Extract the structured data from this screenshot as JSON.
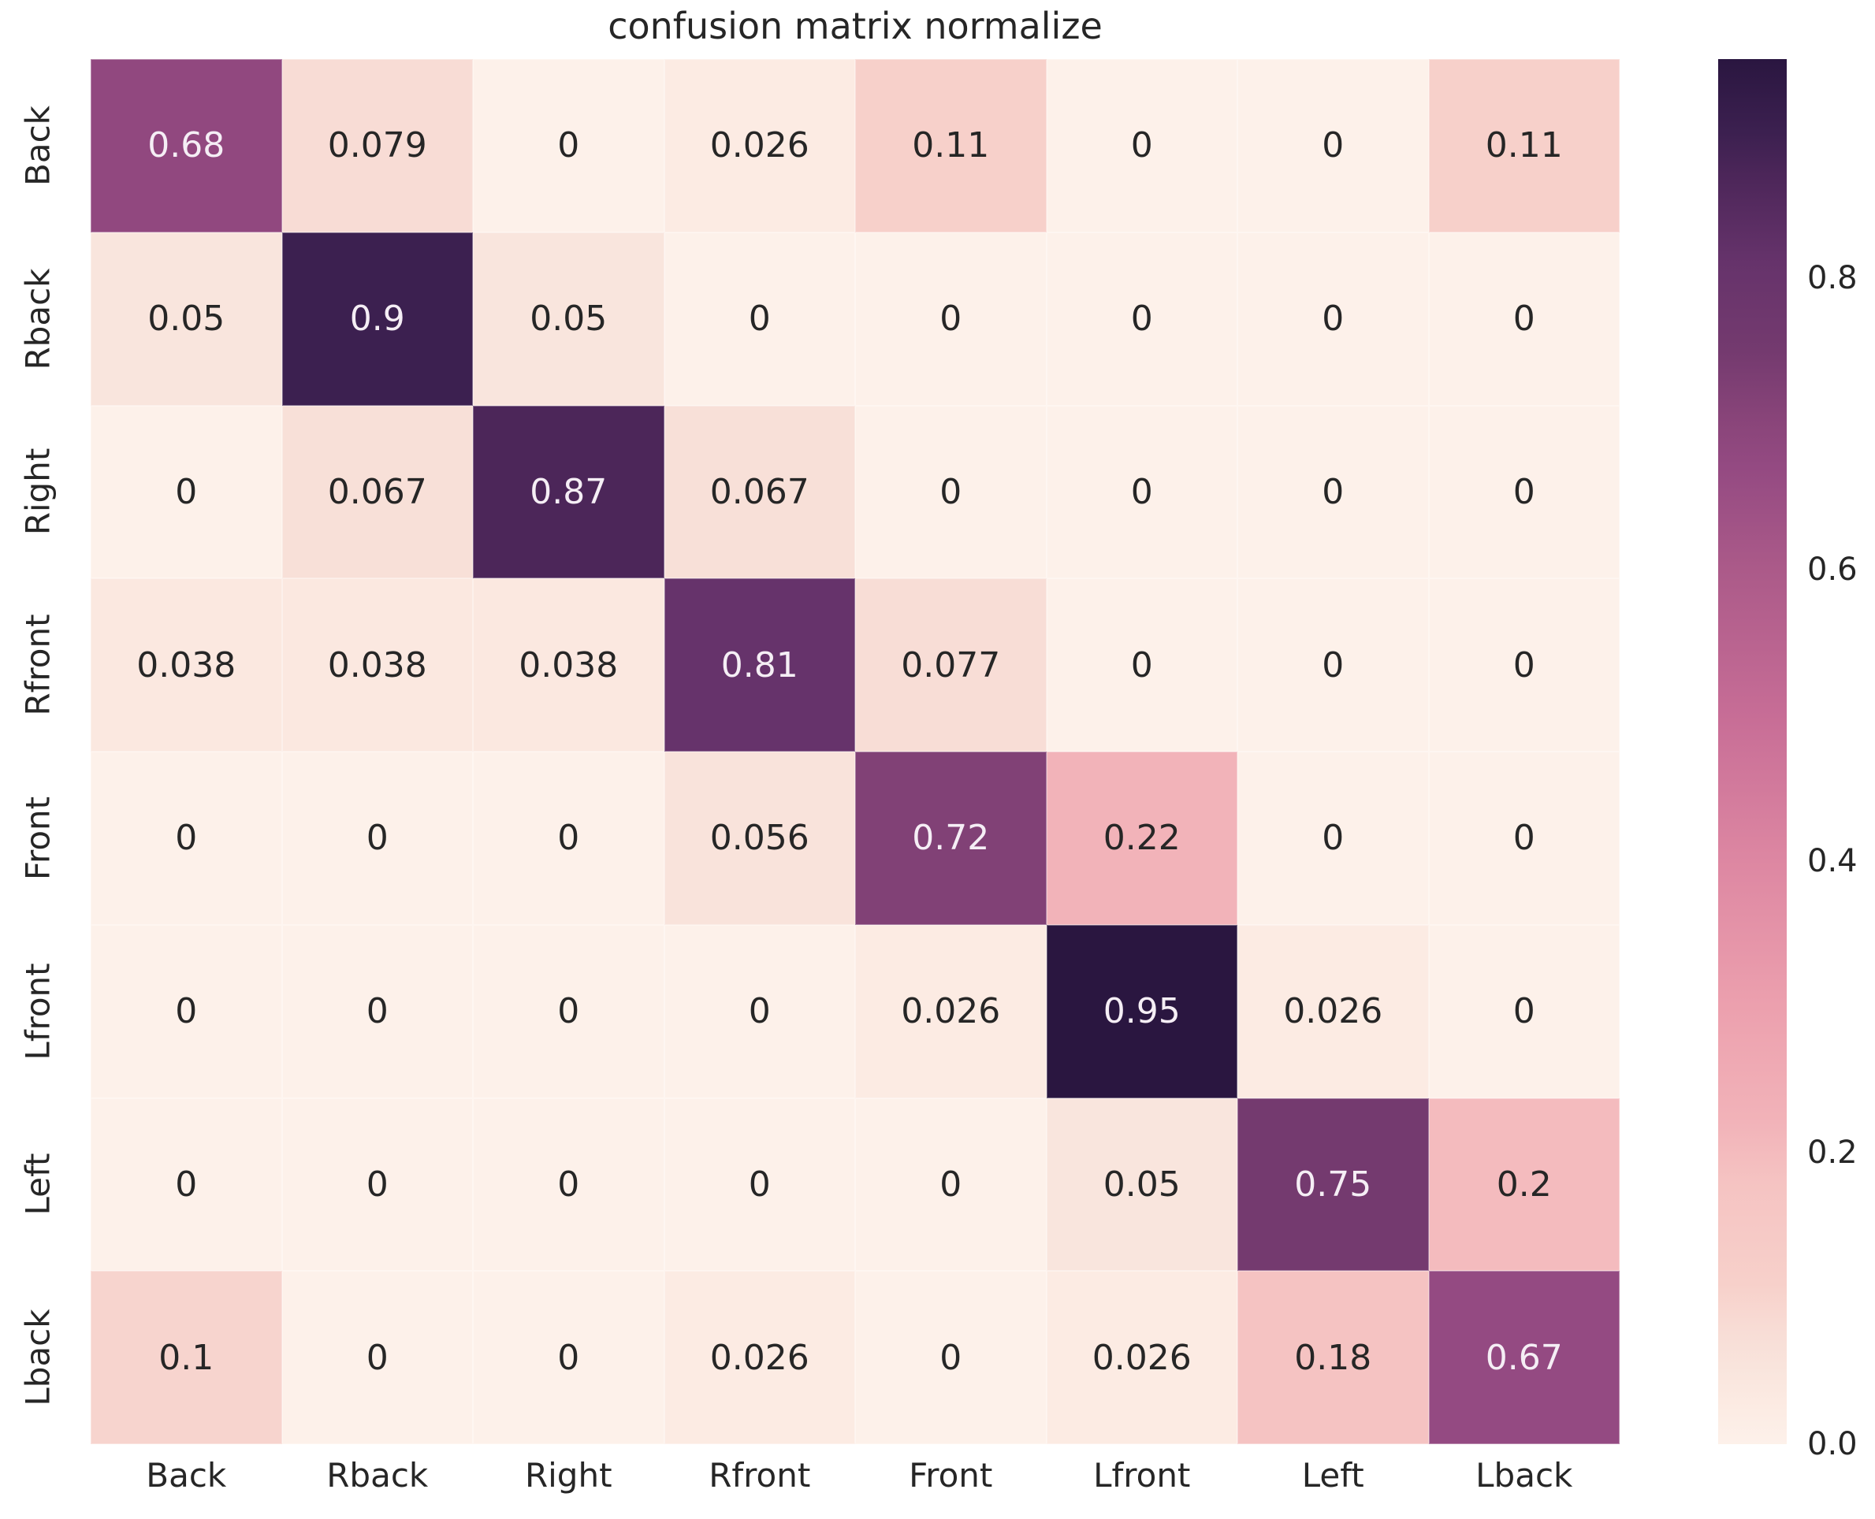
{
  "title": "confusion matrix normalize",
  "chart_data": {
    "type": "heatmap",
    "title": "confusion matrix normalize",
    "categories": [
      "Back",
      "Rback",
      "Right",
      "Rfront",
      "Front",
      "Lfront",
      "Left",
      "Lback"
    ],
    "row_labels": [
      "Back",
      "Rback",
      "Right",
      "Rfront",
      "Front",
      "Lfront",
      "Left",
      "Lback"
    ],
    "col_labels": [
      "Back",
      "Rback",
      "Right",
      "Rfront",
      "Front",
      "Lfront",
      "Left",
      "Lback"
    ],
    "matrix_display": [
      [
        "0.68",
        "0.079",
        "0",
        "0.026",
        "0.11",
        "0",
        "0",
        "0.11"
      ],
      [
        "0.05",
        "0.9",
        "0.05",
        "0",
        "0",
        "0",
        "0",
        "0"
      ],
      [
        "0",
        "0.067",
        "0.87",
        "0.067",
        "0",
        "0",
        "0",
        "0"
      ],
      [
        "0.038",
        "0.038",
        "0.038",
        "0.81",
        "0.077",
        "0",
        "0",
        "0"
      ],
      [
        "0",
        "0",
        "0",
        "0.056",
        "0.72",
        "0.22",
        "0",
        "0"
      ],
      [
        "0",
        "0",
        "0",
        "0",
        "0.026",
        "0.95",
        "0.026",
        "0"
      ],
      [
        "0",
        "0",
        "0",
        "0",
        "0",
        "0.05",
        "0.75",
        "0.2"
      ],
      [
        "0.1",
        "0",
        "0",
        "0.026",
        "0",
        "0.026",
        "0.18",
        "0.67"
      ]
    ],
    "matrix_values": [
      [
        0.68,
        0.079,
        0,
        0.026,
        0.11,
        0,
        0,
        0.11
      ],
      [
        0.05,
        0.9,
        0.05,
        0,
        0,
        0,
        0,
        0
      ],
      [
        0,
        0.067,
        0.87,
        0.067,
        0,
        0,
        0,
        0
      ],
      [
        0.038,
        0.038,
        0.038,
        0.81,
        0.077,
        0,
        0,
        0
      ],
      [
        0,
        0,
        0,
        0.056,
        0.72,
        0.22,
        0,
        0
      ],
      [
        0,
        0,
        0,
        0,
        0.026,
        0.95,
        0.026,
        0
      ],
      [
        0,
        0,
        0,
        0,
        0,
        0.05,
        0.75,
        0.2
      ],
      [
        0.1,
        0,
        0,
        0.026,
        0,
        0.026,
        0.18,
        0.67
      ]
    ],
    "vmin": 0,
    "vmax": 0.95,
    "grid": false,
    "legend_position": "right",
    "colorbar_ticks": [
      "0.8",
      "0.6",
      "0.4",
      "0.2",
      "0.0"
    ],
    "colorbar_tick_values": [
      0.8,
      0.6,
      0.4,
      0.2,
      0.0
    ],
    "colormap_stops": [
      [
        0.0,
        "#fdf1ea"
      ],
      [
        0.026,
        "#fcebe3"
      ],
      [
        0.05,
        "#f9e5dd"
      ],
      [
        0.08,
        "#f8dcd5"
      ],
      [
        0.11,
        "#f7d0ca"
      ],
      [
        0.18,
        "#f5c3c2"
      ],
      [
        0.22,
        "#f2b3b9"
      ],
      [
        0.3,
        "#eca0ae"
      ],
      [
        0.4,
        "#dd87a2"
      ],
      [
        0.5,
        "#c76d96"
      ],
      [
        0.6,
        "#ab5a89"
      ],
      [
        0.67,
        "#944a82"
      ],
      [
        0.7,
        "#8a457a"
      ],
      [
        0.75,
        "#743a6f"
      ],
      [
        0.81,
        "#66336b"
      ],
      [
        0.87,
        "#4c2659"
      ],
      [
        0.9,
        "#3c2050"
      ],
      [
        0.95,
        "#2a1640"
      ]
    ],
    "annotation_color_dark": "#262626",
    "annotation_color_light": "#f5eef5"
  }
}
